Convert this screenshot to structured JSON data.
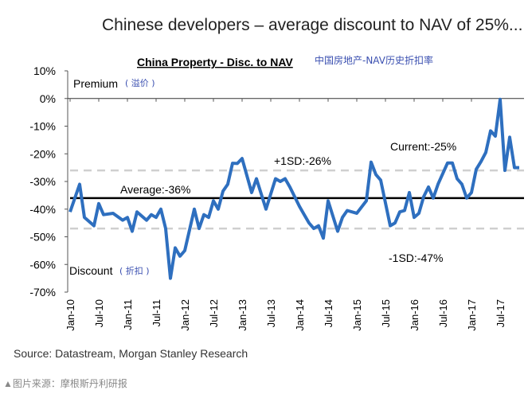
{
  "headline": "Chinese developers – average discount to NAV of 25%...",
  "source": "Source: Datastream, Morgan Stanley Research",
  "footer": "▲图片来源：摩根斯丹利研报",
  "chart_data": {
    "type": "line",
    "title": "China Property - Disc. to NAV",
    "subtitle_cn": "中国房地产-NAV历史折扣率",
    "xlabel": "",
    "ylabel": "",
    "ylim": [
      -70,
      10
    ],
    "y_ticks": [
      "10%",
      "0%",
      "-10%",
      "-20%",
      "-30%",
      "-40%",
      "-50%",
      "-60%",
      "-70%"
    ],
    "x_ticks": [
      "Jan-10",
      "Jul-10",
      "Jan-11",
      "Jul-11",
      "Jan-12",
      "Jul-12",
      "Jan-13",
      "Jul-13",
      "Jan-14",
      "Jul-14",
      "Jan-15",
      "Jul-15",
      "Jan-16",
      "Jul-16",
      "Jan-17",
      "Jul-17"
    ],
    "grid": false,
    "line_color": "#2e6fbf",
    "annotations": {
      "premium": "Premium",
      "premium_cn": "( 溢价 )",
      "discount": "Discount",
      "discount_cn": "( 折扣 )",
      "average": "Average:-36%",
      "plus_sd": "+1SD:-26%",
      "minus_sd": "-1SD:-47%",
      "current": "Current:-25%"
    },
    "reference_lines": [
      {
        "label": "Average",
        "value": -36,
        "style": "solid",
        "color": "#000000"
      },
      {
        "label": "+1SD",
        "value": -26,
        "style": "dashed",
        "color": "#cfcfcf"
      },
      {
        "label": "-1SD",
        "value": -47,
        "style": "dashed",
        "color": "#cfcfcf"
      }
    ],
    "series": [
      {
        "x": [
          "2010-01",
          "2010-03",
          "2010-04",
          "2010-06",
          "2010-07",
          "2010-08",
          "2010-10",
          "2010-12",
          "2011-01",
          "2011-02",
          "2011-03",
          "2011-05",
          "2011-06",
          "2011-07",
          "2011-08",
          "2011-09",
          "2011-10",
          "2011-11",
          "2011-12",
          "2012-01",
          "2012-03",
          "2012-04",
          "2012-05",
          "2012-06",
          "2012-07",
          "2012-08",
          "2012-09",
          "2012-10",
          "2012-11",
          "2012-12",
          "2013-01",
          "2013-03",
          "2013-04",
          "2013-06",
          "2013-08",
          "2013-09",
          "2013-10",
          "2013-11",
          "2014-01",
          "2014-02",
          "2014-03",
          "2014-04",
          "2014-05",
          "2014-06",
          "2014-07",
          "2014-09",
          "2014-10",
          "2014-11",
          "2015-01",
          "2015-03",
          "2015-04",
          "2015-05",
          "2015-06",
          "2015-08",
          "2015-09",
          "2015-10",
          "2015-11",
          "2015-12",
          "2016-01",
          "2016-02",
          "2016-03",
          "2016-04",
          "2016-05",
          "2016-06",
          "2016-08",
          "2016-09",
          "2016-10",
          "2016-11",
          "2016-12",
          "2017-01",
          "2017-02",
          "2017-03",
          "2017-04",
          "2017-05",
          "2017-06",
          "2017-07",
          "2017-08",
          "2017-09",
          "2017-10",
          "2017-11"
        ],
        "y": [
          -41,
          -31,
          -43,
          -46,
          -38,
          -42,
          -41.5,
          -44,
          -43,
          -48,
          -41,
          -44,
          -42,
          -43,
          -40,
          -47,
          -65,
          -54,
          -57,
          -55,
          -40,
          -47,
          -42,
          -43,
          -37,
          -40,
          -33.5,
          -31,
          -23.4,
          -23.5,
          -21.7,
          -34,
          -29,
          -40,
          -29,
          -30,
          -29,
          -32,
          -39,
          -42,
          -45,
          -47,
          -46,
          -50.5,
          -37,
          -48,
          -43,
          -40.5,
          -41.5,
          -37,
          -23,
          -27.5,
          -29.5,
          -46,
          -45,
          -41,
          -40.5,
          -34,
          -43,
          -41.5,
          -35.5,
          -32,
          -36,
          -31,
          -23.3,
          -23.3,
          -29,
          -31,
          -36,
          -34,
          -25.6,
          -22.8,
          -19.5,
          -11.7,
          -13.6,
          -0.3,
          -26,
          -14,
          -25,
          -25
        ]
      }
    ]
  }
}
